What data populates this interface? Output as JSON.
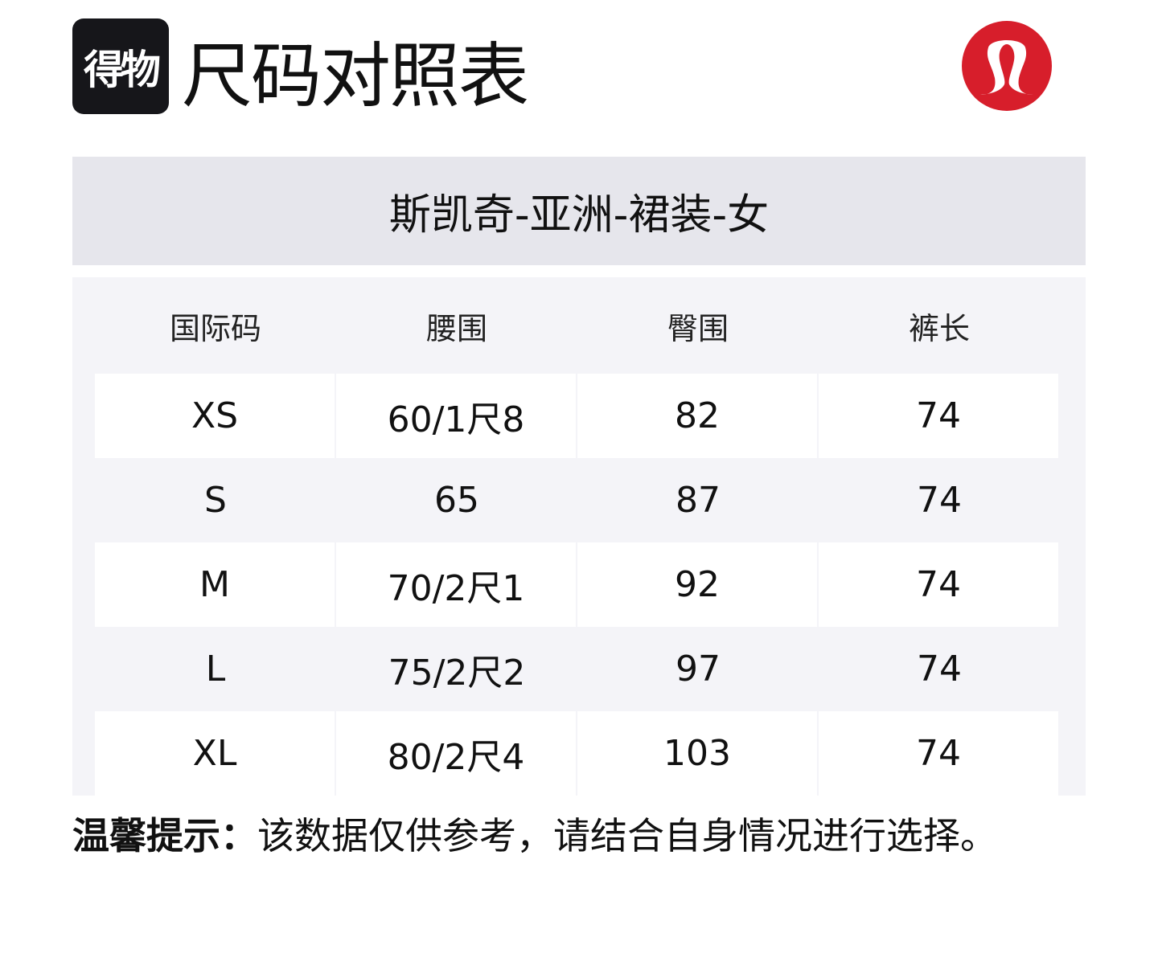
{
  "header": {
    "logo_text": "得物",
    "title": "尺码对照表",
    "brand_logo": "lululemon-logo"
  },
  "band": {
    "subtitle": "斯凯奇-亚洲-裙装-女"
  },
  "table": {
    "columns": [
      "国际码",
      "腰围",
      "臀围",
      "裤长"
    ],
    "rows": [
      [
        "XS",
        "60/1尺8",
        "82",
        "74"
      ],
      [
        "S",
        "65",
        "87",
        "74"
      ],
      [
        "M",
        "70/2尺1",
        "92",
        "74"
      ],
      [
        "L",
        "75/2尺2",
        "97",
        "74"
      ],
      [
        "XL",
        "80/2尺4",
        "103",
        "74"
      ]
    ]
  },
  "tip": {
    "label": "温馨提示：",
    "text": "该数据仅供参考，请结合自身情况进行选择。"
  },
  "colors": {
    "brand_red": "#d71e2b",
    "band_bg": "#e6e6ec",
    "table_bg": "#f4f4f8"
  }
}
